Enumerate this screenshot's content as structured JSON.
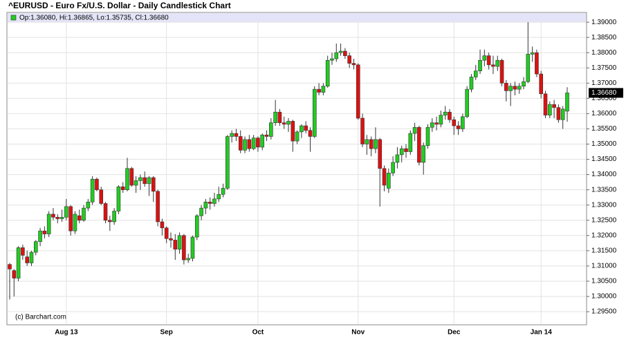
{
  "chart_data": {
    "type": "candlestick",
    "title": "^EURUSD - Euro Fx/U.S. Dollar - Daily Candlestick Chart",
    "legend_label": "Op:1.36080, Hi:1.36865, Lo:1.35735, Cl:1.36680",
    "last_price_label": "1.36680",
    "watermark": "(c) Barchart.com",
    "up_color": "#22cc22",
    "down_color": "#dd1111",
    "grid": true,
    "ylim": [
      1.2907,
      1.3932
    ],
    "yticks": [
      {
        "value": 1.295,
        "label": "1.29500"
      },
      {
        "value": 1.3,
        "label": "1.30000"
      },
      {
        "value": 1.305,
        "label": "1.30500"
      },
      {
        "value": 1.31,
        "label": "1.31000"
      },
      {
        "value": 1.315,
        "label": "1.31500"
      },
      {
        "value": 1.32,
        "label": "1.32000"
      },
      {
        "value": 1.325,
        "label": "1.32500"
      },
      {
        "value": 1.33,
        "label": "1.33000"
      },
      {
        "value": 1.335,
        "label": "1.33500"
      },
      {
        "value": 1.34,
        "label": "1.34000"
      },
      {
        "value": 1.345,
        "label": "1.34500"
      },
      {
        "value": 1.35,
        "label": "1.35000"
      },
      {
        "value": 1.355,
        "label": "1.35500"
      },
      {
        "value": 1.36,
        "label": "1.36000"
      },
      {
        "value": 1.365,
        "label": "1.36500"
      },
      {
        "value": 1.37,
        "label": "1.37000"
      },
      {
        "value": 1.375,
        "label": "1.37500"
      },
      {
        "value": 1.38,
        "label": "1.38000"
      },
      {
        "value": 1.385,
        "label": "1.38500"
      },
      {
        "value": 1.39,
        "label": "1.39000"
      }
    ],
    "categories": [
      null,
      null,
      null,
      null,
      null,
      null,
      null,
      null,
      null,
      null,
      null,
      null,
      null,
      "Aug 13",
      null,
      null,
      null,
      null,
      null,
      null,
      null,
      null,
      null,
      null,
      null,
      null,
      null,
      null,
      null,
      null,
      null,
      null,
      null,
      null,
      null,
      null,
      "Sep",
      null,
      null,
      null,
      null,
      null,
      null,
      null,
      null,
      null,
      null,
      null,
      null,
      null,
      null,
      null,
      null,
      null,
      null,
      null,
      null,
      "Oct",
      null,
      null,
      null,
      null,
      null,
      null,
      null,
      null,
      null,
      null,
      null,
      null,
      null,
      null,
      null,
      null,
      null,
      null,
      null,
      null,
      null,
      null,
      "Nov",
      null,
      null,
      null,
      null,
      null,
      null,
      null,
      null,
      null,
      null,
      null,
      null,
      null,
      null,
      null,
      null,
      null,
      null,
      null,
      null,
      null,
      "Dec",
      null,
      null,
      null,
      null,
      null,
      null,
      null,
      null,
      null,
      null,
      null,
      null,
      null,
      null,
      null,
      null,
      null,
      null,
      null,
      "Jan 14",
      null,
      null,
      null,
      null,
      null,
      null
    ],
    "open": [
      1.3105,
      1.3085,
      1.306,
      1.316,
      1.313,
      1.311,
      1.3145,
      1.318,
      1.3215,
      1.3205,
      1.327,
      1.326,
      1.3255,
      1.326,
      1.3295,
      1.3215,
      1.3265,
      1.325,
      1.329,
      1.331,
      1.3385,
      1.335,
      1.3305,
      1.325,
      1.3245,
      1.328,
      1.336,
      1.335,
      1.342,
      1.3365,
      1.338,
      1.339,
      1.337,
      1.339,
      1.3345,
      1.3245,
      1.3225,
      1.319,
      1.3185,
      1.3155,
      1.32,
      1.312,
      1.3125,
      1.3195,
      1.3265,
      1.329,
      1.331,
      1.3305,
      1.332,
      1.3335,
      1.3355,
      1.3525,
      1.3535,
      1.3525,
      1.348,
      1.3515,
      1.3485,
      1.352,
      1.349,
      1.353,
      1.3525,
      1.357,
      1.3605,
      1.357,
      1.3565,
      1.3575,
      1.351,
      1.354,
      1.356,
      1.3545,
      1.3525,
      1.368,
      1.367,
      1.369,
      1.3775,
      1.378,
      1.38,
      1.3805,
      1.379,
      1.3765,
      1.376,
      1.3585,
      1.35,
      1.3515,
      1.3485,
      1.3515,
      1.342,
      1.3355,
      1.3405,
      1.344,
      1.3465,
      1.3485,
      1.3475,
      1.3535,
      1.3555,
      1.344,
      1.3495,
      1.3555,
      1.357,
      1.3565,
      1.3595,
      1.3605,
      1.358,
      1.356,
      1.355,
      1.359,
      1.368,
      1.372,
      1.374,
      1.3775,
      1.379,
      1.376,
      1.3755,
      1.3775,
      1.37,
      1.3675,
      1.369,
      1.368,
      1.369,
      1.3705,
      1.3795,
      1.38,
      1.373,
      1.3665,
      1.3595,
      1.363,
      1.362,
      1.358,
      1.3608
    ],
    "high": [
      1.311,
      1.309,
      1.3165,
      1.317,
      1.315,
      1.315,
      1.3185,
      1.3225,
      1.323,
      1.328,
      1.329,
      1.327,
      1.3285,
      1.332,
      1.33,
      1.328,
      1.3285,
      1.33,
      1.332,
      1.3395,
      1.339,
      1.336,
      1.331,
      1.3265,
      1.329,
      1.3365,
      1.3375,
      1.3455,
      1.3425,
      1.3395,
      1.34,
      1.341,
      1.3395,
      1.3395,
      1.335,
      1.3255,
      1.323,
      1.321,
      1.3205,
      1.321,
      1.3205,
      1.314,
      1.32,
      1.327,
      1.33,
      1.332,
      1.3325,
      1.334,
      1.336,
      1.337,
      1.353,
      1.3545,
      1.355,
      1.3545,
      1.3525,
      1.353,
      1.353,
      1.3525,
      1.3535,
      1.3545,
      1.3585,
      1.3645,
      1.3615,
      1.359,
      1.3585,
      1.358,
      1.3545,
      1.3565,
      1.3575,
      1.3555,
      1.369,
      1.37,
      1.37,
      1.379,
      1.38,
      1.383,
      1.383,
      1.3815,
      1.38,
      1.378,
      1.3765,
      1.36,
      1.353,
      1.3525,
      1.3555,
      1.352,
      1.343,
      1.342,
      1.346,
      1.349,
      1.3495,
      1.35,
      1.3545,
      1.357,
      1.356,
      1.3505,
      1.3565,
      1.3585,
      1.359,
      1.361,
      1.3625,
      1.3615,
      1.359,
      1.3575,
      1.36,
      1.369,
      1.373,
      1.376,
      1.381,
      1.381,
      1.38,
      1.379,
      1.379,
      1.378,
      1.371,
      1.37,
      1.3705,
      1.37,
      1.372,
      1.39,
      1.382,
      1.381,
      1.374,
      1.3675,
      1.364,
      1.3645,
      1.363,
      1.3625,
      1.36865
    ],
    "low": [
      1.299,
      1.3,
      1.305,
      1.312,
      1.31,
      1.31,
      1.3135,
      1.3165,
      1.319,
      1.3195,
      1.325,
      1.324,
      1.3245,
      1.325,
      1.32,
      1.3205,
      1.324,
      1.3245,
      1.328,
      1.33,
      1.3345,
      1.33,
      1.324,
      1.3215,
      1.3235,
      1.327,
      1.334,
      1.3345,
      1.336,
      1.334,
      1.335,
      1.336,
      1.333,
      1.331,
      1.323,
      1.32,
      1.3175,
      1.316,
      1.312,
      1.314,
      1.3105,
      1.311,
      1.3115,
      1.3185,
      1.325,
      1.327,
      1.3285,
      1.3295,
      1.331,
      1.3325,
      1.335,
      1.3505,
      1.351,
      1.347,
      1.347,
      1.3475,
      1.348,
      1.3475,
      1.348,
      1.351,
      1.3515,
      1.356,
      1.356,
      1.355,
      1.354,
      1.3475,
      1.35,
      1.352,
      1.3535,
      1.3475,
      1.352,
      1.366,
      1.366,
      1.3685,
      1.376,
      1.377,
      1.379,
      1.378,
      1.375,
      1.3745,
      1.358,
      1.349,
      1.3465,
      1.346,
      1.347,
      1.3295,
      1.3345,
      1.334,
      1.3395,
      1.342,
      1.344,
      1.3455,
      1.3465,
      1.351,
      1.343,
      1.34,
      1.3485,
      1.354,
      1.3545,
      1.3555,
      1.358,
      1.357,
      1.353,
      1.353,
      1.354,
      1.3585,
      1.367,
      1.371,
      1.373,
      1.3755,
      1.3745,
      1.373,
      1.374,
      1.369,
      1.364,
      1.3625,
      1.366,
      1.3665,
      1.368,
      1.37,
      1.377,
      1.372,
      1.365,
      1.3585,
      1.3585,
      1.3585,
      1.357,
      1.355,
      1.35735
    ],
    "close": [
      1.309,
      1.306,
      1.316,
      1.3135,
      1.311,
      1.3145,
      1.318,
      1.3215,
      1.3205,
      1.327,
      1.326,
      1.3255,
      1.326,
      1.3295,
      1.3215,
      1.327,
      1.325,
      1.329,
      1.331,
      1.3385,
      1.335,
      1.3305,
      1.325,
      1.3245,
      1.328,
      1.336,
      1.335,
      1.342,
      1.3365,
      1.338,
      1.339,
      1.337,
      1.339,
      1.3345,
      1.3245,
      1.3225,
      1.319,
      1.3185,
      1.3155,
      1.32,
      1.312,
      1.3125,
      1.3195,
      1.3265,
      1.329,
      1.331,
      1.3305,
      1.332,
      1.3335,
      1.3355,
      1.3525,
      1.3535,
      1.3525,
      1.348,
      1.3515,
      1.3485,
      1.352,
      1.349,
      1.353,
      1.3525,
      1.357,
      1.3605,
      1.357,
      1.3565,
      1.3575,
      1.351,
      1.354,
      1.356,
      1.3545,
      1.3525,
      1.368,
      1.367,
      1.369,
      1.3775,
      1.378,
      1.38,
      1.3805,
      1.379,
      1.3765,
      1.376,
      1.3585,
      1.35,
      1.3515,
      1.3485,
      1.3515,
      1.342,
      1.3365,
      1.3405,
      1.344,
      1.3465,
      1.3485,
      1.3475,
      1.3535,
      1.3555,
      1.344,
      1.3495,
      1.3555,
      1.357,
      1.3565,
      1.3595,
      1.3605,
      1.358,
      1.356,
      1.355,
      1.359,
      1.368,
      1.372,
      1.374,
      1.3775,
      1.379,
      1.376,
      1.3755,
      1.3775,
      1.37,
      1.3675,
      1.369,
      1.368,
      1.369,
      1.3705,
      1.3795,
      1.38,
      1.373,
      1.3665,
      1.3595,
      1.363,
      1.362,
      1.358,
      1.3615,
      1.3668
    ]
  }
}
